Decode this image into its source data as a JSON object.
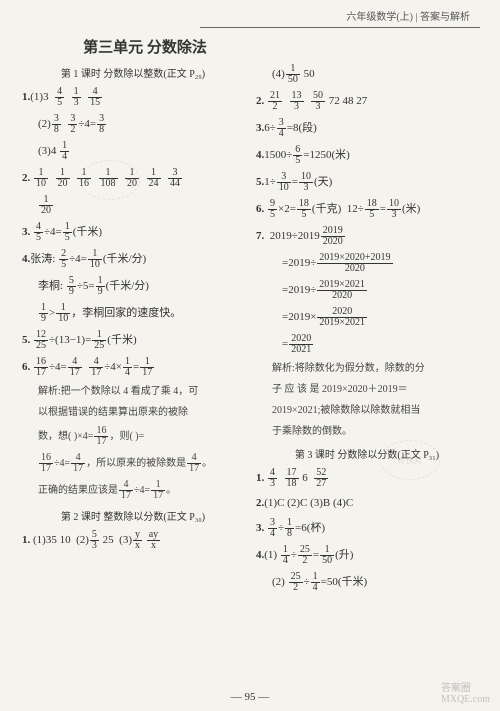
{
  "header": "六年级数学(上) | 答案与解析",
  "title": "第三单元  分数除法",
  "left": {
    "sub1": "第 1 课时  分数除以整数(正文 P₂₉)",
    "p1a_label": "1.",
    "p1a": "(1)3",
    "p1b": "(2)",
    "p1b_eq": "÷4=",
    "p1c": "(3)4",
    "p2_label": "2.",
    "p3_label": "3.",
    "p3_eq": "÷4=",
    "p3_unit": "(千米)",
    "p4_label": "4.",
    "p4a": "张涛:",
    "p4a_eq": "÷4=",
    "p4a_unit": "(千米/分)",
    "p4b": "李桐:",
    "p4b_eq": "÷5=",
    "p4b_unit": "(千米/分)",
    "p4c": ">",
    "p4c_txt": "，李桐回家的速度快。",
    "p5_label": "5.",
    "p5_eq": "÷(13−1)=",
    "p5_unit": "(千米)",
    "p6_label": "6.",
    "p6_eq1": "÷4=",
    "p6_eq2": "÷4×",
    "p6_eq3": "=",
    "p6_ana1": "解析:把一个数除以 4 看成了乘 4，可",
    "p6_ana2": "以根据错误的结果算出原来的被除",
    "p6_ana3": "数，想(    )×4=",
    "p6_ana3b": "，则(    )=",
    "p6_ana4": "÷4=",
    "p6_ana4b": "，所以原来的被除数是",
    "p6_ana4c": "。",
    "p6_ana5": "正确的结果应该是",
    "p6_ana5b": "÷4=",
    "p6_ana5c": "。",
    "sub2": "第 2 课时  整数除以分数(正文 P₃₀)",
    "q1_label": "1.",
    "q1_1": "(1)35  10",
    "q1_2": "(2)",
    "q1_2b": "  25",
    "q1_3": "(3)"
  },
  "right": {
    "r1": "(4)",
    "r1b": "  50",
    "r2_label": "2.",
    "r2_vals": "  72  48  27",
    "r3_label": "3.",
    "r3_eq": "6÷",
    "r3_eq2": "=8(段)",
    "r4_label": "4.",
    "r4_eq": "1500÷",
    "r4_eq2": "=1250(米)",
    "r5_label": "5.",
    "r5_eq": "1÷",
    "r5_eq2": "=",
    "r5_unit": "(天)",
    "r6_label": "6.",
    "r6_eq1": "×2=",
    "r6_unit1": "(千克)",
    "r6_eq2": "12÷",
    "r6_eq3": "=",
    "r6_unit2": "(米)",
    "r7_label": "7.",
    "r7_line1": "2019÷2019",
    "r7_line2": "=2019÷",
    "r7_line3": "=2019÷",
    "r7_line4": "=2019×",
    "r7_line5": "=",
    "r7_ana1": "解析:将除数化为假分数，除数的分",
    "r7_ana2": "子 应 该 是 2019×2020＋2019＝",
    "r7_ana3": "2019×2021;被除数除以除数就相当",
    "r7_ana4": "于乘除数的倒数。",
    "sub3": "第 3 课时  分数除以分数(正文 P₃₁)",
    "s1_label": "1.",
    "s1_vals": "  6",
    "s2_label": "2.",
    "s2_txt": "(1)C  (2)C  (3)B  (4)C",
    "s3_label": "3.",
    "s3_eq": "÷",
    "s3_eq2": "=6(杯)",
    "s4_label": "4.",
    "s4a": "(1)",
    "s4a_eq": "÷",
    "s4a_eq2": "=",
    "s4a_unit": "(升)",
    "s4b": "(2)",
    "s4b_eq": "÷",
    "s4b_eq2": "=50(千米)"
  },
  "pagenum": "— 95 —",
  "wm1": "答案圈",
  "wm2": "MXQE.com"
}
